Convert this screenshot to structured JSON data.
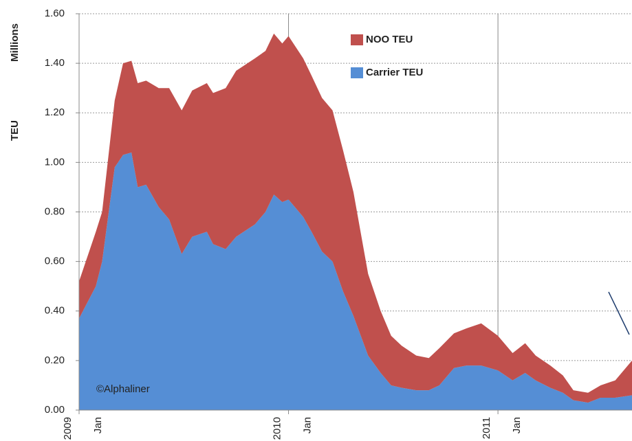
{
  "chart_data": {
    "type": "stacked_area",
    "y_label": "TEU",
    "y_unit_label": "Millions",
    "annotation": "©Alphaliner",
    "x": [
      2009.0,
      2009.08,
      2009.11,
      2009.17,
      2009.21,
      2009.25,
      2009.28,
      2009.32,
      2009.38,
      2009.43,
      2009.49,
      2009.54,
      2009.61,
      2009.64,
      2009.7,
      2009.75,
      2009.84,
      2009.89,
      2009.93,
      2009.97,
      2010.0,
      2010.07,
      2010.11,
      2010.16,
      2010.21,
      2010.26,
      2010.31,
      2010.38,
      2010.44,
      2010.49,
      2010.54,
      2010.61,
      2010.67,
      2010.72,
      2010.79,
      2010.85,
      2010.92,
      2011.0,
      2011.07,
      2011.13,
      2011.18,
      2011.25,
      2011.31,
      2011.36,
      2011.43,
      2011.49,
      2011.56,
      2011.64
    ],
    "series": [
      {
        "name": "Carrier TEU",
        "color": "#558ed5",
        "values": [
          0.37,
          0.5,
          0.6,
          0.98,
          1.03,
          1.04,
          0.9,
          0.91,
          0.82,
          0.77,
          0.63,
          0.7,
          0.72,
          0.67,
          0.65,
          0.7,
          0.75,
          0.8,
          0.87,
          0.84,
          0.85,
          0.78,
          0.72,
          0.64,
          0.6,
          0.48,
          0.38,
          0.22,
          0.15,
          0.1,
          0.09,
          0.08,
          0.08,
          0.1,
          0.17,
          0.18,
          0.18,
          0.16,
          0.12,
          0.15,
          0.12,
          0.09,
          0.07,
          0.04,
          0.03,
          0.05,
          0.05,
          0.06
        ]
      },
      {
        "name": "NOO TEU",
        "color": "#c0504d",
        "values": [
          0.15,
          0.22,
          0.2,
          0.27,
          0.37,
          0.37,
          0.42,
          0.42,
          0.48,
          0.53,
          0.58,
          0.59,
          0.6,
          0.61,
          0.65,
          0.67,
          0.67,
          0.65,
          0.65,
          0.64,
          0.66,
          0.64,
          0.63,
          0.62,
          0.61,
          0.57,
          0.5,
          0.33,
          0.25,
          0.2,
          0.17,
          0.14,
          0.13,
          0.15,
          0.14,
          0.15,
          0.17,
          0.14,
          0.11,
          0.12,
          0.1,
          0.09,
          0.07,
          0.04,
          0.04,
          0.05,
          0.07,
          0.14
        ]
      }
    ],
    "xlim": [
      2009,
      2011.64
    ],
    "xticks": [
      {
        "value": 2009,
        "label": "2009"
      },
      {
        "value": 2010,
        "label": "2010"
      },
      {
        "value": 2011,
        "label": "2011"
      }
    ],
    "x_tick_sublabel": "Jan",
    "ylim": [
      0,
      1.6
    ],
    "yticks": [
      {
        "value": 0,
        "label": "0.00"
      },
      {
        "value": 0.2,
        "label": "0.20"
      },
      {
        "value": 0.4,
        "label": "0.40"
      },
      {
        "value": 0.6,
        "label": "0.60"
      },
      {
        "value": 0.8,
        "label": "0.80"
      },
      {
        "value": 1.0,
        "label": "1.00"
      },
      {
        "value": 1.2,
        "label": "1.20"
      },
      {
        "value": 1.4,
        "label": "1.40"
      },
      {
        "value": 1.6,
        "label": "1.60"
      }
    ],
    "grid": true
  }
}
